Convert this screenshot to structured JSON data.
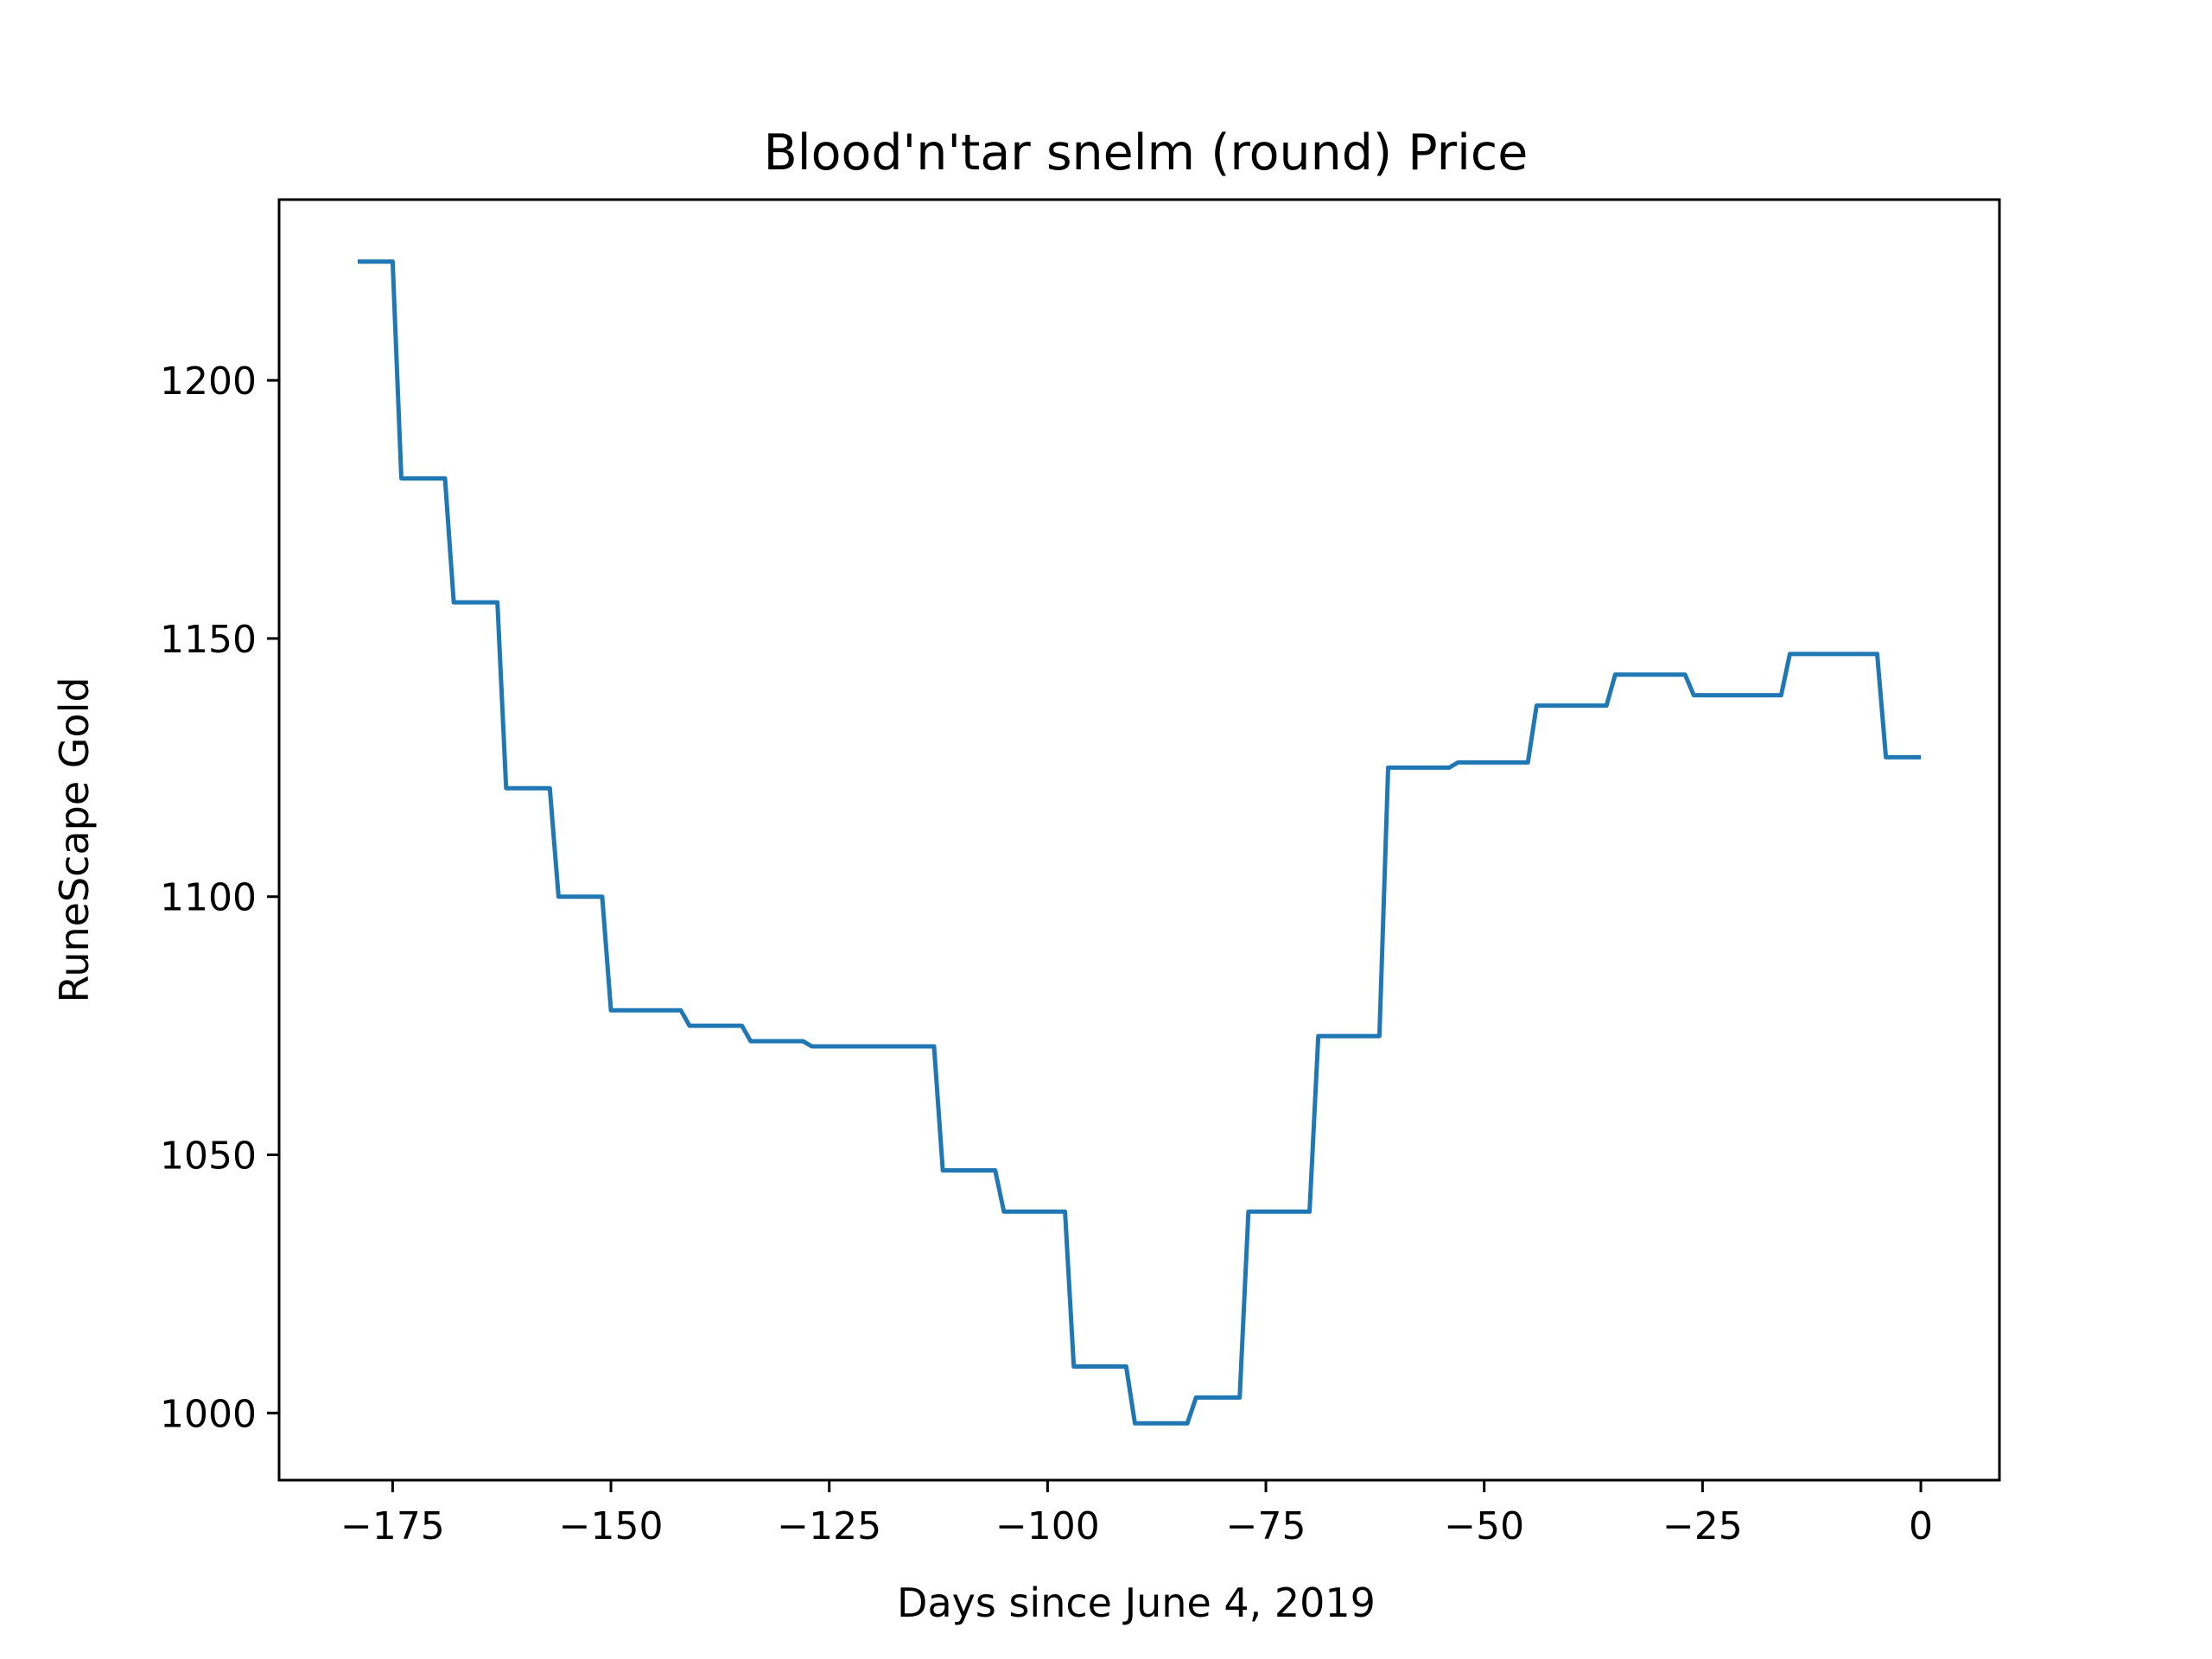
{
  "chart_data": {
    "type": "line",
    "title": "Blood'n'tar snelm (round) Price",
    "xlabel": "Days since June 4, 2019",
    "ylabel": "RuneScape Gold",
    "xlim": [
      -188,
      9
    ],
    "ylim": [
      987,
      1235
    ],
    "xticks": [
      {
        "value": -175,
        "label": "−175"
      },
      {
        "value": -150,
        "label": "−150"
      },
      {
        "value": -125,
        "label": "−125"
      },
      {
        "value": -100,
        "label": "−100"
      },
      {
        "value": -75,
        "label": "−75"
      },
      {
        "value": -50,
        "label": "−50"
      },
      {
        "value": -25,
        "label": "−25"
      },
      {
        "value": 0,
        "label": "0"
      }
    ],
    "yticks": [
      {
        "value": 1000,
        "label": "1000"
      },
      {
        "value": 1050,
        "label": "1050"
      },
      {
        "value": 1100,
        "label": "1100"
      },
      {
        "value": 1150,
        "label": "1150"
      },
      {
        "value": 1200,
        "label": "1200"
      }
    ],
    "grid": false,
    "series": [
      {
        "color": "#1f77b4",
        "x": [
          -179,
          -175,
          -174,
          -169,
          -168,
          -163,
          -162,
          -157,
          -156,
          -151,
          -150,
          -142,
          -141,
          -135,
          -134,
          -128,
          -127,
          -113,
          -112,
          -106,
          -105,
          -98,
          -97,
          -91,
          -90,
          -84,
          -83,
          -78,
          -77,
          -70,
          -69,
          -62,
          -61,
          -54,
          -53,
          -45,
          -44,
          -36,
          -35,
          -27,
          -26,
          -16,
          -15,
          -5,
          -4,
          0
        ],
        "y": [
          1223,
          1223,
          1181,
          1181,
          1157,
          1157,
          1121,
          1121,
          1100,
          1100,
          1078,
          1078,
          1075,
          1075,
          1072,
          1072,
          1071,
          1071,
          1047,
          1047,
          1039,
          1039,
          1009,
          1009,
          998,
          998,
          1003,
          1003,
          1039,
          1039,
          1073,
          1073,
          1125,
          1125,
          1126,
          1126,
          1137,
          1137,
          1143,
          1143,
          1139,
          1139,
          1147,
          1147,
          1127,
          1127
        ]
      }
    ]
  }
}
